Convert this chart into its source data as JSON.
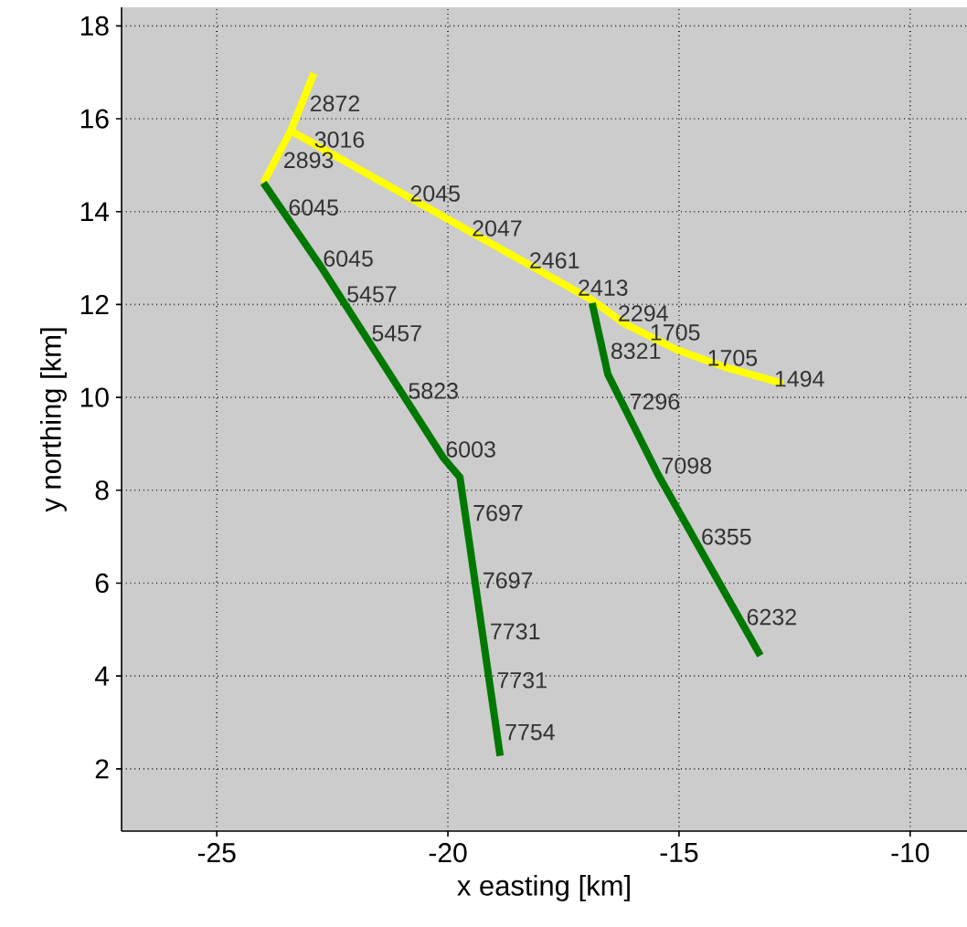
{
  "chart_data": {
    "type": "line",
    "xlabel": "x easting [km]",
    "ylabel": "y northing [km]",
    "xlim": [
      -27.06,
      -8.77
    ],
    "ylim": [
      0.66,
      18.4
    ],
    "xticks": [
      -25,
      -20,
      -15,
      -10
    ],
    "yticks": [
      2,
      4,
      6,
      8,
      10,
      12,
      14,
      16,
      18
    ],
    "grid": true,
    "series": [
      {
        "color": "#ffff00",
        "x": [
          -22.9,
          -23.4,
          -23.99
        ],
        "values": [
          16.98,
          15.74,
          14.62
        ]
      },
      {
        "color": "#ffff00",
        "x": [
          -23.4,
          -16.84,
          -16.2,
          -15.06,
          -14.0,
          -12.75
        ],
        "values": [
          15.74,
          12.07,
          11.6,
          11.03,
          10.65,
          10.3
        ]
      },
      {
        "color": "#007800",
        "x": [
          -23.99,
          -22.77,
          -20.1,
          -19.74,
          -18.87
        ],
        "values": [
          14.62,
          12.85,
          8.7,
          8.28,
          2.28
        ]
      },
      {
        "color": "#007800",
        "x": [
          -16.88,
          -16.54,
          -15.45,
          -13.24
        ],
        "values": [
          12.03,
          10.5,
          8.33,
          4.44
        ]
      }
    ],
    "annotations": [
      {
        "text": "2872",
        "x": -23.16,
        "y": 16.33
      },
      {
        "text": "2893",
        "x": -23.73,
        "y": 15.11
      },
      {
        "text": "3016",
        "x": -23.06,
        "y": 15.55
      },
      {
        "text": "2045",
        "x": -20.99,
        "y": 14.39
      },
      {
        "text": "2047",
        "x": -19.65,
        "y": 13.64
      },
      {
        "text": "2461",
        "x": -18.41,
        "y": 12.95
      },
      {
        "text": "2413",
        "x": -17.36,
        "y": 12.36
      },
      {
        "text": "2294",
        "x": -16.49,
        "y": 11.81
      },
      {
        "text": "8321",
        "x": -16.65,
        "y": 11.0
      },
      {
        "text": "1705",
        "x": -15.8,
        "y": 11.4
      },
      {
        "text": "1705",
        "x": -14.56,
        "y": 10.85
      },
      {
        "text": "1494",
        "x": -13.11,
        "y": 10.4
      },
      {
        "text": "6045",
        "x": -23.62,
        "y": 14.09
      },
      {
        "text": "6045",
        "x": -22.87,
        "y": 12.99
      },
      {
        "text": "5457",
        "x": -22.36,
        "y": 12.22
      },
      {
        "text": "5457",
        "x": -21.82,
        "y": 11.38
      },
      {
        "text": "5823",
        "x": -21.03,
        "y": 10.14
      },
      {
        "text": "6003",
        "x": -20.22,
        "y": 8.88
      },
      {
        "text": "7697",
        "x": -19.63,
        "y": 7.51
      },
      {
        "text": "7697",
        "x": -19.42,
        "y": 6.06
      },
      {
        "text": "7731",
        "x": -19.26,
        "y": 4.96
      },
      {
        "text": "7731",
        "x": -19.11,
        "y": 3.91
      },
      {
        "text": "7754",
        "x": -18.94,
        "y": 2.79
      },
      {
        "text": "7296",
        "x": -16.24,
        "y": 9.91
      },
      {
        "text": "7098",
        "x": -15.55,
        "y": 8.53
      },
      {
        "text": "6355",
        "x": -14.69,
        "y": 7.0
      },
      {
        "text": "6232",
        "x": -13.71,
        "y": 5.27
      }
    ]
  }
}
